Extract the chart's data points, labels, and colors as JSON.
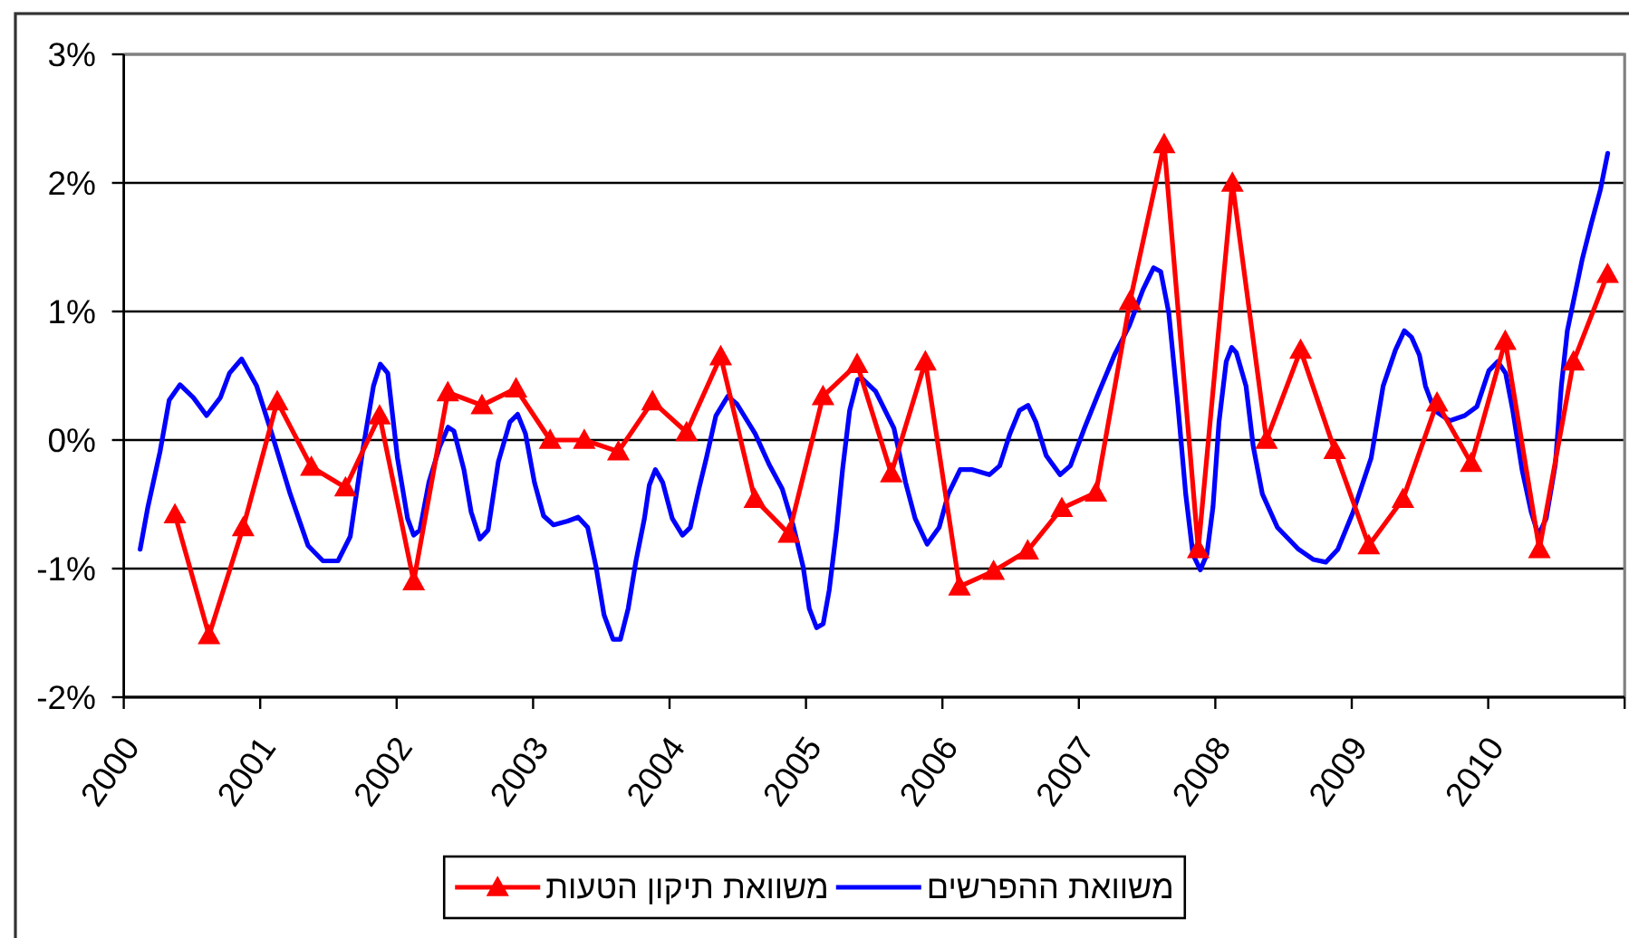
{
  "chart_data": {
    "type": "line",
    "xlim": [
      2000,
      2011
    ],
    "xticks": [
      2000,
      2001,
      2002,
      2003,
      2004,
      2005,
      2006,
      2007,
      2008,
      2009,
      2010,
      {
        "value": 2011,
        "label": null
      }
    ],
    "ylim": [
      -2,
      3
    ],
    "yticks": [
      {
        "value": -2,
        "label": "-2%"
      },
      {
        "value": -1,
        "label": "-1%"
      },
      {
        "value": 0,
        "label": "0%"
      },
      {
        "value": 1,
        "label": "1%"
      },
      {
        "value": 2,
        "label": "2%"
      },
      {
        "value": 3,
        "label": "3%"
      }
    ],
    "grid": "y",
    "legend": "bottom",
    "series": [
      {
        "name": "משוואת ההפרשים",
        "color": "#0000ff",
        "marker": "none",
        "x": [
          2000.12,
          2000.177,
          2000.266,
          2000.333,
          2000.412,
          2000.51,
          2000.607,
          2000.708,
          2000.775,
          2000.864,
          2000.974,
          2001.085,
          2001.22,
          2001.35,
          2001.46,
          2001.57,
          2001.66,
          2001.75,
          2001.83,
          2001.88,
          2001.935,
          2002.006,
          2002.08,
          2002.125,
          2002.17,
          2002.236,
          2002.316,
          2002.377,
          2002.42,
          2002.493,
          2002.546,
          2002.61,
          2002.67,
          2002.745,
          2002.83,
          2002.887,
          2002.944,
          2003.01,
          2003.077,
          2003.15,
          2003.254,
          2003.33,
          2003.4,
          2003.462,
          2003.52,
          2003.586,
          2003.64,
          2003.697,
          2003.754,
          2003.816,
          2003.852,
          2003.896,
          2003.95,
          2004.02,
          2004.095,
          2004.152,
          2004.215,
          2004.27,
          2004.34,
          2004.427,
          2004.494,
          2004.627,
          2004.73,
          2004.826,
          2004.905,
          2004.98,
          2005.024,
          2005.078,
          2005.126,
          2005.17,
          2005.224,
          2005.268,
          2005.32,
          2005.378,
          2005.41,
          2005.51,
          2005.645,
          2005.73,
          2005.8,
          2005.888,
          2005.976,
          2006.043,
          2006.13,
          2006.22,
          2006.344,
          2006.42,
          2006.495,
          2006.565,
          2006.627,
          2006.685,
          2006.76,
          2006.862,
          2006.938,
          2007.04,
          2007.15,
          2007.26,
          2007.37,
          2007.47,
          2007.548,
          2007.6,
          2007.659,
          2007.725,
          2007.783,
          2007.836,
          2007.89,
          2007.938,
          2007.983,
          2008.027,
          2008.08,
          2008.12,
          2008.154,
          2008.225,
          2008.278,
          2008.345,
          2008.455,
          2008.61,
          2008.72,
          2008.81,
          2008.898,
          2009.01,
          2009.142,
          2009.23,
          2009.32,
          2009.385,
          2009.438,
          2009.496,
          2009.54,
          2009.607,
          2009.717,
          2009.828,
          2009.917,
          2010.005,
          2010.07,
          2010.128,
          2010.18,
          2010.248,
          2010.315,
          2010.368,
          2010.425,
          2010.492,
          2010.536,
          2010.58,
          2010.625,
          2010.69,
          2010.757,
          2010.823,
          2010.876
        ],
        "values": [
          -0.85,
          -0.52,
          -0.09,
          0.31,
          0.43,
          0.33,
          0.19,
          0.33,
          0.52,
          0.63,
          0.42,
          0.05,
          -0.42,
          -0.82,
          -0.94,
          -0.94,
          -0.75,
          -0.09,
          0.42,
          0.59,
          0.52,
          -0.14,
          -0.61,
          -0.74,
          -0.7,
          -0.33,
          -0.05,
          0.1,
          0.07,
          -0.23,
          -0.56,
          -0.77,
          -0.7,
          -0.17,
          0.14,
          0.2,
          0.05,
          -0.33,
          -0.59,
          -0.66,
          -0.63,
          -0.6,
          -0.68,
          -0.99,
          -1.36,
          -1.55,
          -1.55,
          -1.31,
          -0.94,
          -0.61,
          -0.35,
          -0.23,
          -0.33,
          -0.61,
          -0.74,
          -0.68,
          -0.38,
          -0.14,
          0.19,
          0.34,
          0.28,
          0.05,
          -0.19,
          -0.38,
          -0.66,
          -0.99,
          -1.31,
          -1.46,
          -1.43,
          -1.17,
          -0.7,
          -0.23,
          0.23,
          0.47,
          0.48,
          0.38,
          0.09,
          -0.33,
          -0.61,
          -0.81,
          -0.68,
          -0.42,
          -0.23,
          -0.23,
          -0.27,
          -0.2,
          0.05,
          0.23,
          0.27,
          0.14,
          -0.12,
          -0.27,
          -0.2,
          0.09,
          0.38,
          0.66,
          0.89,
          1.17,
          1.34,
          1.31,
          0.99,
          0.28,
          -0.42,
          -0.89,
          -1.01,
          -0.89,
          -0.52,
          0.14,
          0.61,
          0.72,
          0.68,
          0.42,
          -0.05,
          -0.42,
          -0.68,
          -0.85,
          -0.93,
          -0.95,
          -0.85,
          -0.56,
          -0.14,
          0.42,
          0.7,
          0.85,
          0.8,
          0.66,
          0.42,
          0.23,
          0.15,
          0.19,
          0.26,
          0.54,
          0.61,
          0.52,
          0.23,
          -0.23,
          -0.56,
          -0.74,
          -0.61,
          -0.19,
          0.42,
          0.85,
          1.08,
          1.41,
          1.69,
          1.95,
          2.23
        ]
      },
      {
        "name": "משוואת תיקון הטעות",
        "color": "#ff0000",
        "marker": "triangle",
        "x": [
          2000.375,
          2000.625,
          2000.875,
          2001.125,
          2001.375,
          2001.625,
          2001.875,
          2002.125,
          2002.375,
          2002.625,
          2002.875,
          2003.125,
          2003.375,
          2003.625,
          2003.875,
          2004.125,
          2004.375,
          2004.625,
          2004.875,
          2005.125,
          2005.375,
          2005.625,
          2005.875,
          2006.125,
          2006.375,
          2006.625,
          2006.875,
          2007.125,
          2007.375,
          2007.625,
          2007.875,
          2008.125,
          2008.375,
          2008.625,
          2008.875,
          2009.125,
          2009.375,
          2009.625,
          2009.875,
          2010.125,
          2010.375,
          2010.625,
          2010.875
        ],
        "values": [
          -0.58,
          -1.52,
          -0.68,
          0.3,
          -0.21,
          -0.37,
          0.19,
          -1.1,
          0.37,
          0.27,
          0.4,
          0,
          0,
          -0.09,
          0.3,
          0.06,
          0.65,
          -0.46,
          -0.73,
          0.34,
          0.59,
          -0.26,
          0.61,
          -1.14,
          -1.02,
          -0.86,
          -0.53,
          -0.41,
          1.08,
          2.3,
          -0.85,
          2.0,
          0,
          0.7,
          -0.08,
          -0.82,
          -0.46,
          0.29,
          -0.18,
          0.77,
          -0.85,
          0.61,
          1.29
        ]
      }
    ]
  }
}
